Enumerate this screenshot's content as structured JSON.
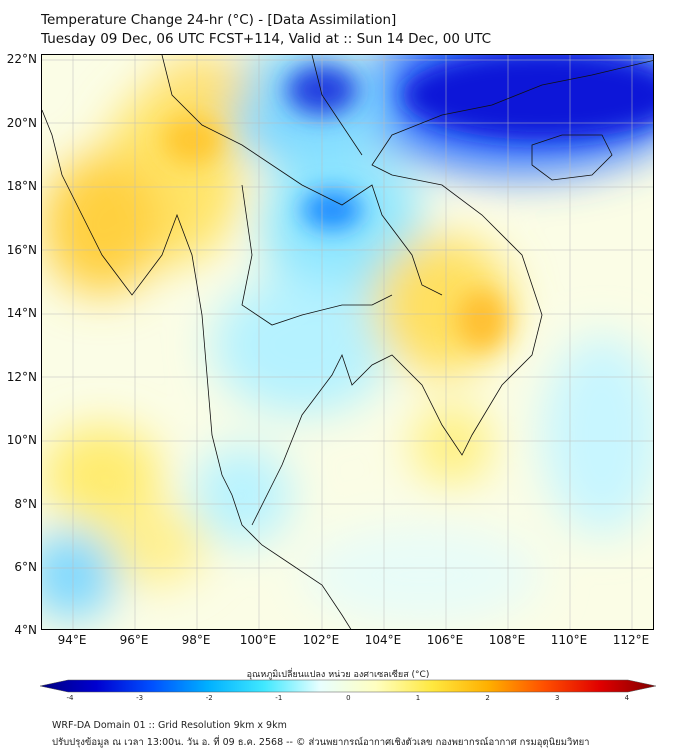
{
  "title": {
    "line1": "Temperature Change 24-hr (°C) - [Data Assimilation]",
    "line2": "Tuesday 09 Dec, 06 UTC FCST+114, Valid at :: Sun 14 Dec, 00 UTC"
  },
  "map": {
    "lat_labels": [
      "22°N",
      "20°N",
      "18°N",
      "16°N",
      "14°N",
      "12°N",
      "10°N",
      "8°N",
      "6°N",
      "4°N"
    ],
    "lon_labels": [
      "94°E",
      "96°E",
      "98°E",
      "100°E",
      "102°E",
      "104°E",
      "106°E",
      "108°E",
      "110°E",
      "112°E"
    ]
  },
  "colorbar": {
    "title": "อุณหภูมิเปลี่ยนแปลง หน่วย องศาเซลเซียส (°C)",
    "ticks": [
      "-4",
      "-3",
      "-2",
      "-1",
      "0",
      "1",
      "2",
      "3",
      "4"
    ],
    "range": [
      -4,
      4
    ],
    "colors": [
      "#00007f",
      "#0000d0",
      "#0050ff",
      "#00b0ff",
      "#40e8ff",
      "#e8ffff",
      "#ffffc0",
      "#ffe840",
      "#ffb000",
      "#ff5000",
      "#e00000",
      "#7f0000"
    ]
  },
  "footer": {
    "line1": "WRF-DA Domain 01 :: Grid Resolution 9km x 9km",
    "line2": "ปรับปรุงข้อมูล ณ เวลา 13:00น. วัน อ. ที่ 09 ธ.ค. 2568 -- © ส่วนพยากรณ์อากาศเชิงตัวเลข กองพยากรณ์อากาศ กรมอุตุนิยมวิทยา"
  }
}
